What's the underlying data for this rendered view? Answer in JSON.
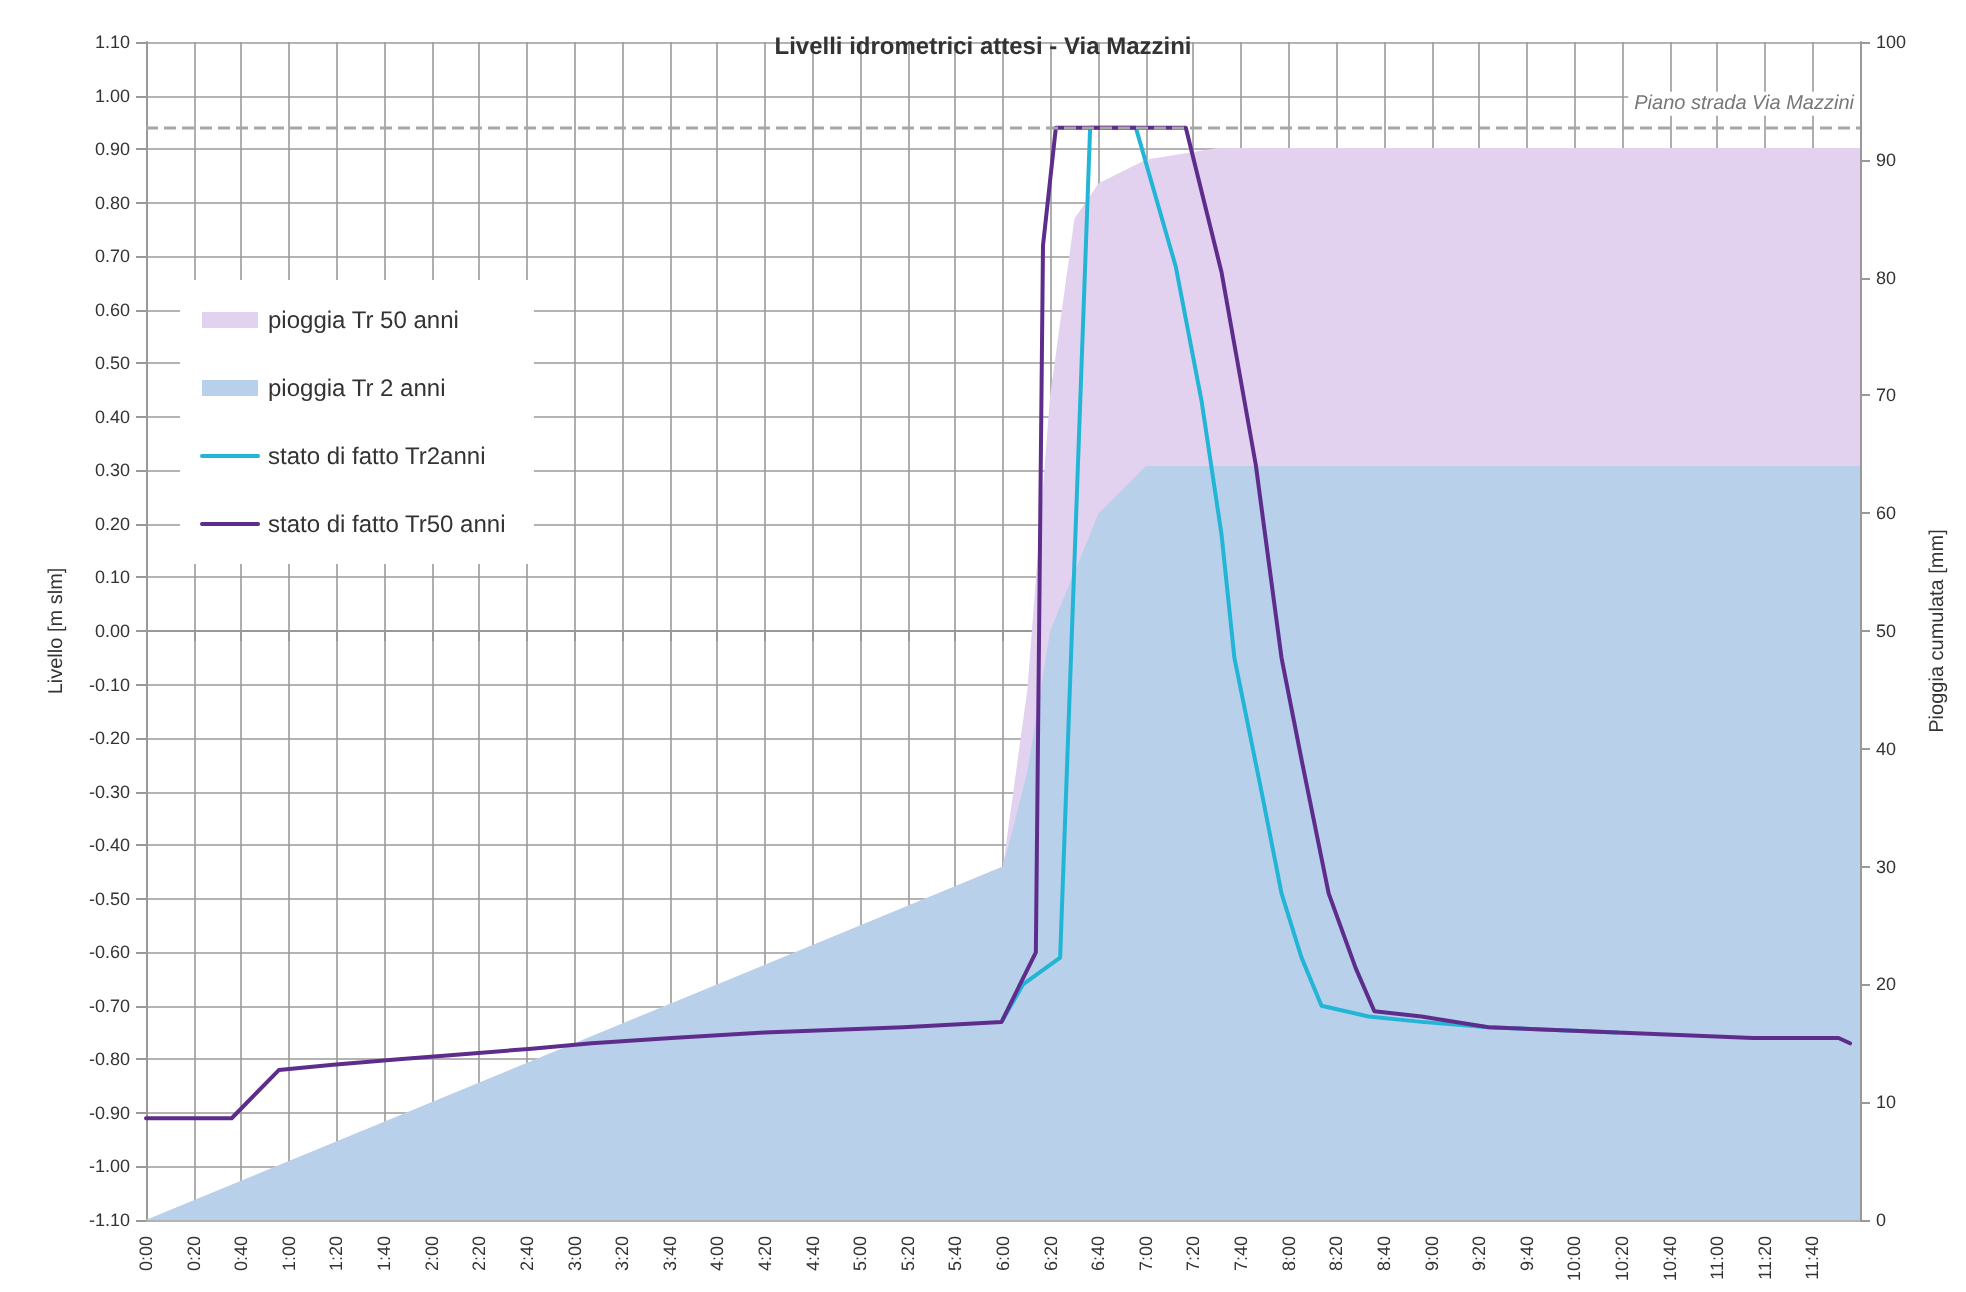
{
  "chart_data": {
    "type": "line",
    "title": "Livelli idrometrici attesi - Via Mazzini",
    "ylabel": "Livello [m slm]",
    "y2label": "Pioggia cumulata [mm]",
    "xlim": [
      0,
      12
    ],
    "xticks": [
      {
        "value": 0,
        "label": "0:00"
      },
      {
        "value": 0.3333,
        "label": "0:20"
      },
      {
        "value": 0.6667,
        "label": "0:40"
      },
      {
        "value": 1,
        "label": "1:00"
      },
      {
        "value": 1.3333,
        "label": "1:20"
      },
      {
        "value": 1.6667,
        "label": "1:40"
      },
      {
        "value": 2,
        "label": "2:00"
      },
      {
        "value": 2.3333,
        "label": "2:20"
      },
      {
        "value": 2.6667,
        "label": "2:40"
      },
      {
        "value": 3,
        "label": "3:00"
      },
      {
        "value": 3.3333,
        "label": "3:20"
      },
      {
        "value": 3.6667,
        "label": "3:40"
      },
      {
        "value": 4,
        "label": "4:00"
      },
      {
        "value": 4.3333,
        "label": "4:20"
      },
      {
        "value": 4.6667,
        "label": "4:40"
      },
      {
        "value": 5,
        "label": "5:00"
      },
      {
        "value": 5.3333,
        "label": "5:20"
      },
      {
        "value": 5.6667,
        "label": "5:40"
      },
      {
        "value": 6,
        "label": "6:00"
      },
      {
        "value": 6.3333,
        "label": "6:20"
      },
      {
        "value": 6.6667,
        "label": "6:40"
      },
      {
        "value": 7,
        "label": "7:00"
      },
      {
        "value": 7.3333,
        "label": "7:20"
      },
      {
        "value": 7.6667,
        "label": "7:40"
      },
      {
        "value": 8,
        "label": "8:00"
      },
      {
        "value": 8.3333,
        "label": "8:20"
      },
      {
        "value": 8.6667,
        "label": "8:40"
      },
      {
        "value": 9,
        "label": "9:00"
      },
      {
        "value": 9.3333,
        "label": "9:20"
      },
      {
        "value": 9.6667,
        "label": "9:40"
      },
      {
        "value": 10,
        "label": "10:00"
      },
      {
        "value": 10.3333,
        "label": "10:20"
      },
      {
        "value": 10.6667,
        "label": "10:40"
      },
      {
        "value": 11,
        "label": "11:00"
      },
      {
        "value": 11.3333,
        "label": "11:20"
      },
      {
        "value": 11.6667,
        "label": "11:40"
      }
    ],
    "ylim": [
      -1.1,
      1.1
    ],
    "yticks": [
      {
        "value": -1.1,
        "label": "-1.10"
      },
      {
        "value": -1.0,
        "label": "-1.00"
      },
      {
        "value": -0.9,
        "label": "-0.90"
      },
      {
        "value": -0.8,
        "label": "-0.80"
      },
      {
        "value": -0.7,
        "label": "-0.70"
      },
      {
        "value": -0.6,
        "label": "-0.60"
      },
      {
        "value": -0.5,
        "label": "-0.50"
      },
      {
        "value": -0.4,
        "label": "-0.40"
      },
      {
        "value": -0.3,
        "label": "-0.30"
      },
      {
        "value": -0.2,
        "label": "-0.20"
      },
      {
        "value": -0.1,
        "label": "-0.10"
      },
      {
        "value": 0,
        "label": "0.00"
      },
      {
        "value": 0.1,
        "label": "0.10"
      },
      {
        "value": 0.2,
        "label": "0.20"
      },
      {
        "value": 0.3,
        "label": "0.30"
      },
      {
        "value": 0.4,
        "label": "0.40"
      },
      {
        "value": 0.5,
        "label": "0.50"
      },
      {
        "value": 0.6,
        "label": "0.60"
      },
      {
        "value": 0.7,
        "label": "0.70"
      },
      {
        "value": 0.8,
        "label": "0.80"
      },
      {
        "value": 0.9,
        "label": "0.90"
      },
      {
        "value": 1.0,
        "label": "1.00"
      },
      {
        "value": 1.1,
        "label": "1.10"
      }
    ],
    "y2lim": [
      0,
      100
    ],
    "y2ticks": [
      0,
      10,
      20,
      30,
      40,
      50,
      60,
      70,
      80,
      90,
      100
    ],
    "grid": true,
    "legend": "top left",
    "marker": "none",
    "line_style": "solid",
    "ref_lines": [
      {
        "axis": "y",
        "value": 0.94,
        "label": "Piano strada Via Mazzini",
        "color": "#a6a6a6",
        "line_style": "dashed"
      }
    ],
    "series": [
      {
        "name": "pioggia Tr 50 anni",
        "type": "area",
        "axis": "y2",
        "color": "#e2d2ef",
        "x": [
          0,
          6,
          6.17,
          6.33,
          6.5,
          6.67,
          7,
          7.5,
          12
        ],
        "values": [
          0,
          30,
          45,
          70,
          85,
          88,
          90,
          91,
          91
        ]
      },
      {
        "name": "pioggia Tr 2 anni",
        "type": "area",
        "axis": "y2",
        "color": "#b8d0ea",
        "x": [
          0,
          6,
          6.17,
          6.33,
          6.67,
          7,
          12
        ],
        "values": [
          0,
          30,
          38,
          50,
          60,
          64,
          64
        ]
      },
      {
        "name": "stato di fatto Tr2anni",
        "type": "line",
        "color": "#22b5d6",
        "x": [
          5.99,
          6.14,
          6.4,
          6.61,
          6.93,
          7.21,
          7.39,
          7.53,
          7.62,
          7.81,
          7.95,
          8.09,
          8.23,
          8.56,
          8.93,
          9.4,
          10.3
        ],
        "values": [
          -0.73,
          -0.66,
          -0.61,
          0.94,
          0.94,
          0.68,
          0.43,
          0.18,
          -0.05,
          -0.3,
          -0.49,
          -0.61,
          -0.7,
          -0.72,
          -0.73,
          -0.74,
          -0.75
        ]
      },
      {
        "name": "stato di fatto Tr50 anni",
        "type": "line",
        "color": "#5e2d8c",
        "x": [
          0,
          0.6,
          0.93,
          1.31,
          1.77,
          2.24,
          2.7,
          3.12,
          3.68,
          4.33,
          5.3,
          5.99,
          6.23,
          6.28,
          6.37,
          7.28,
          7.53,
          7.77,
          7.95,
          8.09,
          8.28,
          8.47,
          8.6,
          8.93,
          9.4,
          10.3,
          11.25,
          11.85,
          11.93
        ],
        "values": [
          -0.91,
          -0.91,
          -0.82,
          -0.81,
          -0.8,
          -0.79,
          -0.78,
          -0.77,
          -0.76,
          -0.75,
          -0.74,
          -0.73,
          -0.6,
          0.72,
          0.94,
          0.94,
          0.67,
          0.31,
          -0.05,
          -0.24,
          -0.49,
          -0.63,
          -0.71,
          -0.72,
          -0.74,
          -0.75,
          -0.76,
          -0.76,
          -0.77
        ]
      }
    ]
  }
}
